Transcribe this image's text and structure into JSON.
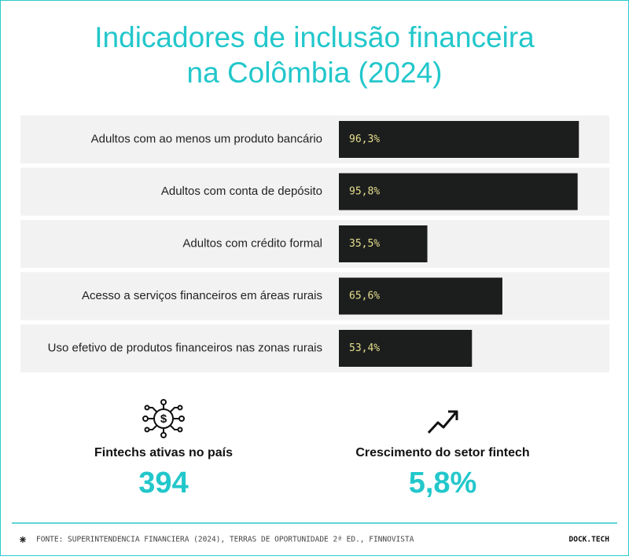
{
  "chart_data": {
    "type": "bar",
    "orientation": "horizontal",
    "title": [
      "Indicadores de inclusão financeira",
      "na Colômbia (2024)"
    ],
    "categories": [
      "Adultos com ao menos um produto bancário",
      "Adultos com conta de depósito",
      "Adultos com crédito formal",
      "Acesso a serviços financeiros em áreas rurais",
      "Uso efetivo de produtos financeiros nas zonas rurais"
    ],
    "values": [
      96.3,
      95.8,
      35.5,
      65.6,
      53.4
    ],
    "value_labels": [
      "96,3%",
      "95,8%",
      "35,5%",
      "65,6%",
      "53,4%"
    ],
    "color": "#1c1e1e",
    "xlim": [
      0,
      100
    ]
  },
  "stats": [
    {
      "label": "Fintechs ativas no país",
      "value": "394"
    },
    {
      "label": "Crescimento do setor fintech",
      "value": "5,8%"
    }
  ],
  "footer": {
    "source": "FONTE: SUPERINTENDENCIA FINANCIERA (2024), TERRAS DE OPORTUNIDADE 2ª ED., FINNOVISTA",
    "brand": "DOCK.TECH"
  }
}
